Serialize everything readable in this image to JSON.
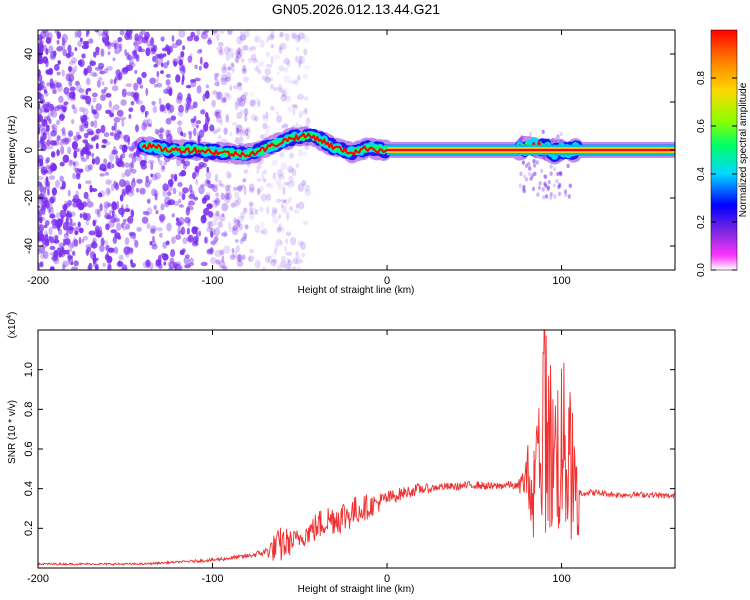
{
  "figure_title": "GN05.2026.012.13.44.G21",
  "colors": {
    "snr_line": "#f03030",
    "spectrogram_scatter": "#7a2cf0",
    "colormap": [
      "#ffffff",
      "#ff33ff",
      "#8a2be2",
      "#0000ff",
      "#00d7ff",
      "#00ff66",
      "#8cff00",
      "#ffd700",
      "#ff8000",
      "#ff0000"
    ]
  },
  "chart_data": [
    {
      "type": "heatmap",
      "title": "GN05.2026.012.13.44.G21",
      "xlabel": "Height of straight line (km)",
      "ylabel": "Frequency (Hz)",
      "xlim": [
        -200,
        165
      ],
      "ylim": [
        -50,
        50
      ],
      "xticks": [
        -200,
        -100,
        0,
        100
      ],
      "yticks": [
        -40,
        -20,
        0,
        20,
        40
      ],
      "colorbar": {
        "label": "Normalized spectral amplitude",
        "range": [
          0,
          1
        ],
        "ticks": [
          "0.0",
          "0.2",
          "0.4",
          "0.6",
          "0.8"
        ]
      },
      "ridge": {
        "x": [
          -140,
          -125,
          -110,
          -95,
          -85,
          -75,
          -65,
          -55,
          -45,
          -40,
          -35,
          -30,
          -25,
          -20,
          -15,
          -10,
          -5,
          0,
          10,
          20,
          30,
          40,
          50,
          60,
          70,
          75,
          80,
          85,
          90,
          95,
          100,
          105,
          110,
          130,
          150,
          165
        ],
        "y": [
          2,
          0,
          0,
          -1,
          -2,
          -1,
          2,
          5,
          6,
          5,
          3,
          1,
          0,
          -1,
          0,
          1,
          0,
          0,
          0,
          0,
          0,
          0,
          0,
          0,
          0,
          0,
          1,
          2,
          1,
          -1,
          0,
          0,
          0,
          0,
          0,
          0
        ]
      }
    },
    {
      "type": "line",
      "xlabel": "Height of straight line (km)",
      "ylabel": "SNR (10 * v/v)",
      "y_multiplier": "(x10^4)",
      "y_multiplier_base": "(x10",
      "y_multiplier_exp": "4",
      "xlim": [
        -200,
        165
      ],
      "ylim": [
        0,
        1.2
      ],
      "xticks": [
        -200,
        -100,
        0,
        100
      ],
      "yticks": [
        0.2,
        0.4,
        0.6,
        0.8,
        1.0
      ],
      "ytick_labels": [
        "0.2",
        "0.4",
        "0.6",
        "0.8",
        "1.0"
      ],
      "series": [
        {
          "name": "SNR",
          "x": [
            -200,
            -180,
            -160,
            -140,
            -120,
            -100,
            -90,
            -80,
            -70,
            -65,
            -60,
            -55,
            -50,
            -45,
            -40,
            -35,
            -30,
            -25,
            -20,
            -15,
            -10,
            -5,
            0,
            10,
            20,
            25,
            30,
            40,
            50,
            60,
            70,
            75,
            80,
            85,
            90,
            95,
            100,
            105,
            110,
            120,
            130,
            140,
            150,
            165
          ],
          "values": [
            0.02,
            0.02,
            0.02,
            0.02,
            0.03,
            0.04,
            0.05,
            0.06,
            0.08,
            0.1,
            0.12,
            0.13,
            0.15,
            0.18,
            0.21,
            0.24,
            0.25,
            0.26,
            0.28,
            0.3,
            0.31,
            0.33,
            0.35,
            0.38,
            0.4,
            0.4,
            0.41,
            0.41,
            0.42,
            0.41,
            0.42,
            0.41,
            0.45,
            0.6,
            1.2,
            0.85,
            0.95,
            0.8,
            0.38,
            0.38,
            0.37,
            0.37,
            0.37,
            0.36
          ],
          "band": [
            0.005,
            0.005,
            0.005,
            0.005,
            0.005,
            0.008,
            0.01,
            0.01,
            0.02,
            0.07,
            0.1,
            0.06,
            0.05,
            0.06,
            0.08,
            0.08,
            0.08,
            0.09,
            0.08,
            0.07,
            0.06,
            0.05,
            0.04,
            0.03,
            0.03,
            0.02,
            0.02,
            0.02,
            0.02,
            0.02,
            0.02,
            0.02,
            0.12,
            0.4,
            0.6,
            0.4,
            0.45,
            0.3,
            0.02,
            0.015,
            0.015,
            0.015,
            0.015,
            0.015
          ]
        }
      ]
    }
  ]
}
